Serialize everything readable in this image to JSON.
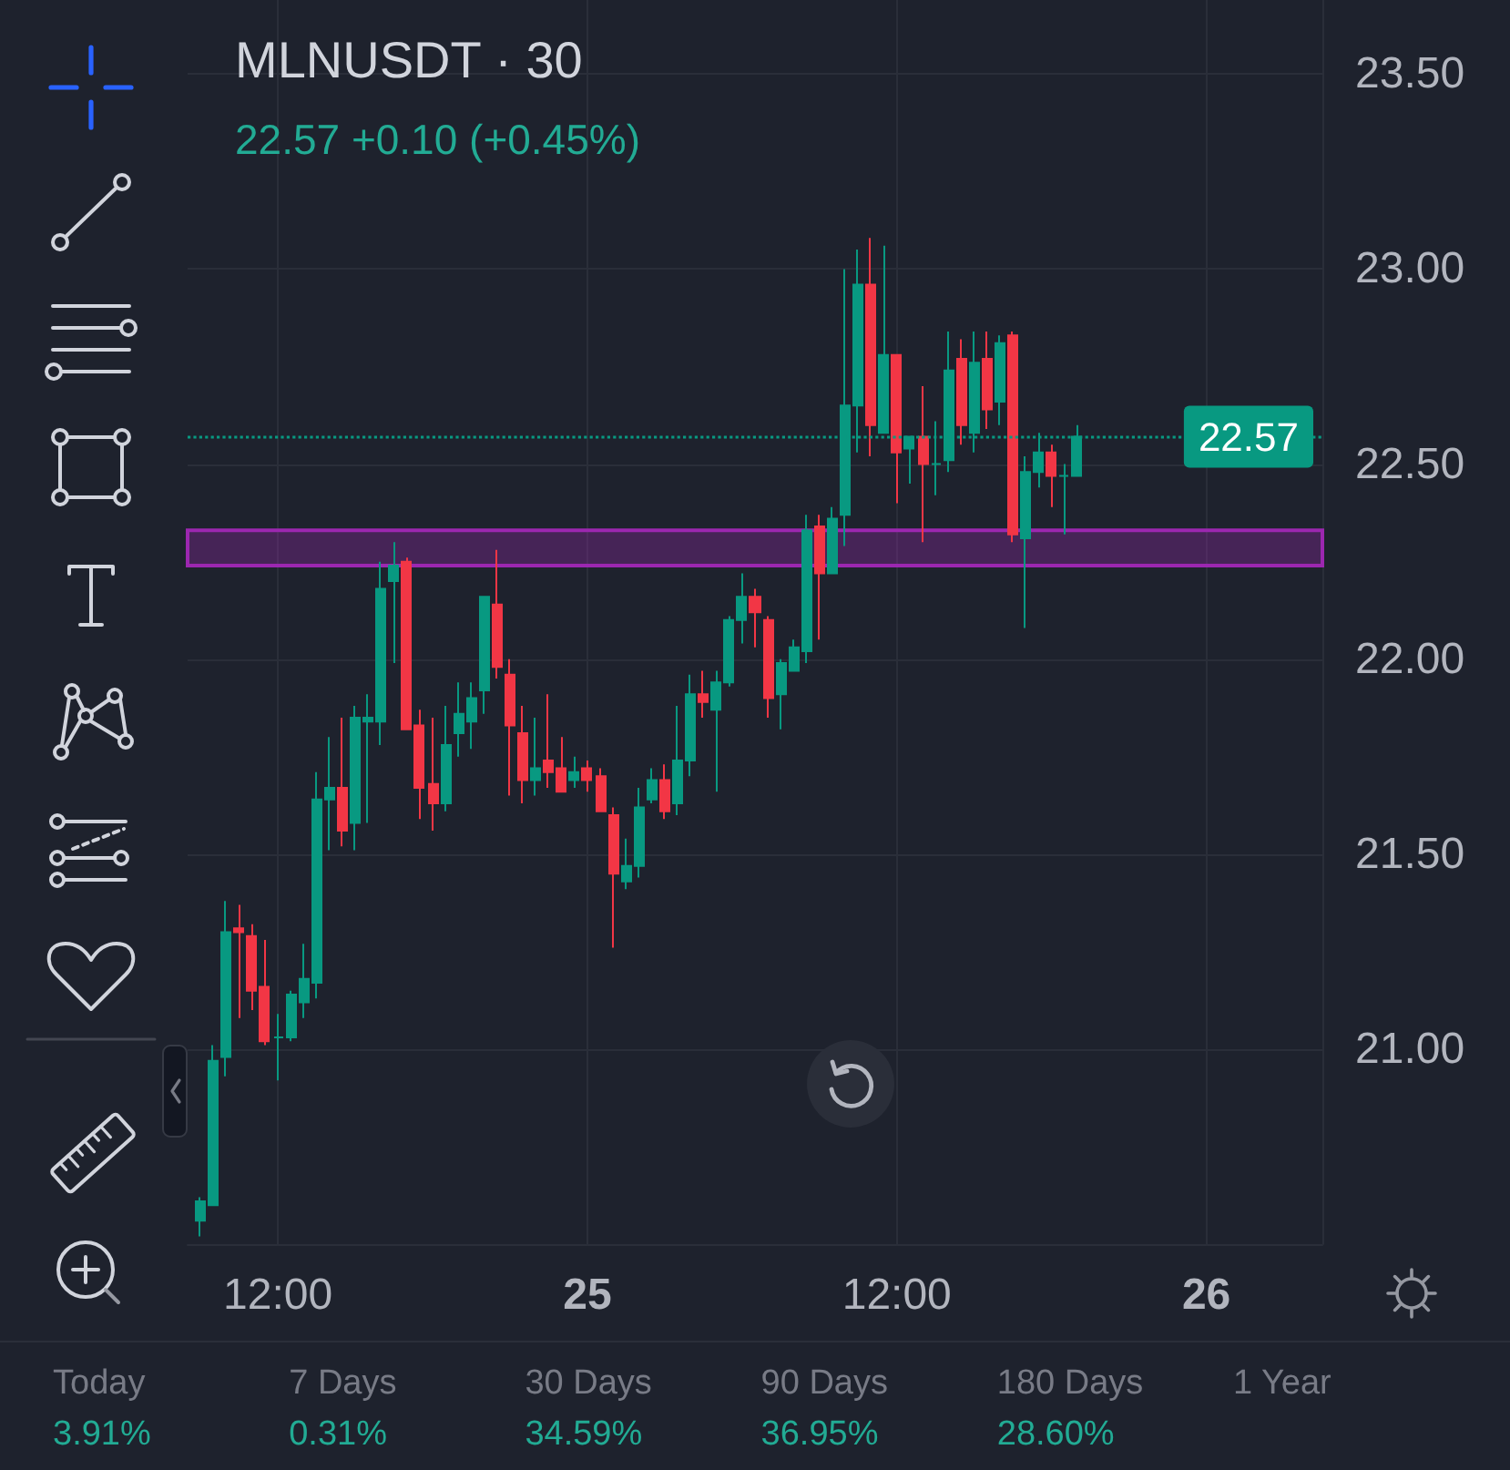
{
  "chart_data": {
    "type": "candlestick",
    "title": "MLNUSDT · 30",
    "subtitle": "22.57 +0.10 (+0.45%)",
    "categories": [
      null,
      null,
      null,
      null,
      null,
      null,
      null,
      "12:00",
      null,
      null,
      null,
      null,
      null,
      null,
      null,
      null,
      null,
      null,
      null,
      null,
      null,
      null,
      null,
      null,
      null,
      null,
      null,
      null,
      null,
      null,
      null,
      "25",
      null,
      null,
      null,
      null,
      null,
      null,
      null,
      null,
      null,
      null,
      null,
      null,
      null,
      null,
      null,
      null,
      null,
      null,
      null,
      null,
      null,
      null,
      null,
      "12:00",
      null,
      null,
      null,
      null,
      null,
      null,
      null,
      null,
      null,
      null,
      null,
      null,
      null,
      null,
      null,
      null,
      null,
      null,
      null,
      null,
      null,
      null,
      null,
      "26",
      null,
      null,
      null,
      null,
      null,
      null,
      null,
      null,
      null
    ],
    "ohlc": [
      null,
      [
        20.56,
        20.62,
        20.52,
        20.61
      ],
      [
        20.6,
        21.01,
        20.6,
        20.97
      ],
      [
        20.98,
        21.38,
        20.93,
        21.3
      ],
      [
        21.31,
        21.37,
        21.08,
        21.3
      ],
      [
        21.29,
        21.32,
        21.1,
        21.15
      ],
      [
        21.16,
        21.28,
        21.01,
        21.02
      ],
      [
        21.03,
        21.09,
        20.92,
        21.03
      ],
      [
        21.03,
        21.15,
        21.02,
        21.14
      ],
      [
        21.12,
        21.27,
        21.08,
        21.18
      ],
      [
        21.17,
        21.71,
        21.13,
        21.64
      ],
      [
        21.64,
        21.8,
        21.51,
        21.67
      ],
      [
        21.67,
        21.85,
        21.52,
        21.56
      ],
      [
        21.58,
        21.88,
        21.51,
        21.85
      ],
      [
        21.84,
        21.91,
        21.58,
        21.85
      ],
      [
        21.84,
        22.25,
        21.78,
        22.18
      ],
      [
        22.2,
        22.3,
        21.99,
        22.24
      ],
      [
        22.25,
        22.26,
        21.82,
        21.82
      ],
      [
        21.83,
        21.87,
        21.59,
        21.67
      ],
      [
        21.68,
        21.85,
        21.56,
        21.63
      ],
      [
        21.63,
        21.88,
        21.61,
        21.78
      ],
      [
        21.81,
        21.94,
        21.75,
        21.86
      ],
      [
        21.84,
        21.94,
        21.77,
        21.9
      ],
      [
        21.92,
        22.16,
        21.86,
        22.16
      ],
      [
        22.14,
        22.28,
        21.95,
        21.98
      ],
      [
        21.96,
        22.0,
        21.65,
        21.83
      ],
      [
        21.81,
        21.88,
        21.63,
        21.69
      ],
      [
        21.69,
        21.85,
        21.65,
        21.72
      ],
      [
        21.74,
        21.91,
        21.67,
        21.71
      ],
      [
        21.72,
        21.8,
        21.66,
        21.66
      ],
      [
        21.69,
        21.75,
        21.67,
        21.71
      ],
      [
        21.72,
        21.74,
        21.66,
        21.69
      ],
      [
        21.7,
        21.72,
        21.61,
        21.61
      ],
      [
        21.6,
        21.62,
        21.26,
        21.45
      ],
      [
        21.43,
        21.54,
        21.41,
        21.47
      ],
      [
        21.47,
        21.67,
        21.44,
        21.62
      ],
      [
        21.64,
        21.72,
        21.63,
        21.69
      ],
      [
        21.69,
        21.73,
        21.59,
        21.61
      ],
      [
        21.63,
        21.88,
        21.6,
        21.74
      ],
      [
        21.74,
        21.96,
        21.7,
        21.91
      ],
      [
        21.91,
        21.97,
        21.85,
        21.89
      ],
      [
        21.87,
        21.97,
        21.66,
        21.94
      ],
      [
        21.94,
        22.11,
        21.93,
        22.1
      ],
      [
        22.1,
        22.22,
        22.04,
        22.16
      ],
      [
        22.16,
        22.18,
        22.03,
        22.12
      ],
      [
        22.1,
        22.11,
        21.85,
        21.9
      ],
      [
        21.91,
        22.0,
        21.82,
        21.99
      ],
      [
        21.97,
        22.05,
        21.97,
        22.03
      ],
      [
        22.02,
        22.37,
        21.99,
        22.33
      ],
      [
        22.34,
        22.37,
        22.05,
        22.22
      ],
      [
        22.22,
        22.39,
        22.22,
        22.36
      ],
      [
        22.37,
        23.0,
        22.29,
        22.65
      ],
      [
        22.65,
        23.05,
        22.53,
        22.96
      ],
      [
        22.96,
        23.08,
        22.52,
        22.6
      ],
      [
        22.58,
        23.06,
        22.58,
        22.78
      ],
      [
        22.78,
        22.78,
        22.4,
        22.53
      ],
      [
        22.54,
        22.57,
        22.45,
        22.57
      ],
      [
        22.57,
        22.7,
        22.3,
        22.5
      ],
      [
        22.5,
        22.61,
        22.42,
        22.5
      ],
      [
        22.51,
        22.84,
        22.48,
        22.74
      ],
      [
        22.77,
        22.82,
        22.55,
        22.6
      ],
      [
        22.58,
        22.84,
        22.53,
        22.76
      ],
      [
        22.77,
        22.84,
        22.59,
        22.64
      ],
      [
        22.66,
        22.83,
        22.6,
        22.81
      ],
      [
        22.83,
        22.84,
        22.3,
        22.32
      ],
      [
        22.31,
        22.52,
        22.08,
        22.48
      ],
      [
        22.48,
        22.58,
        22.44,
        22.53
      ],
      [
        22.53,
        22.55,
        22.39,
        22.47
      ],
      [
        22.47,
        22.5,
        22.32,
        22.47
      ],
      [
        22.47,
        22.6,
        22.47,
        22.57
      ],
      null,
      null,
      null,
      null,
      null,
      null,
      null,
      null,
      null,
      null,
      null,
      null,
      null,
      null,
      null,
      null,
      null,
      null,
      null
    ],
    "colors": [
      null,
      "#089981",
      "#089981",
      "#089981",
      "#f23645",
      "#f23645",
      "#f23645",
      "#089981",
      "#089981",
      "#089981",
      "#089981",
      "#089981",
      "#f23645",
      "#089981",
      "#089981",
      "#089981",
      "#089981",
      "#f23645",
      "#f23645",
      "#f23645",
      "#089981",
      "#089981",
      "#089981",
      "#089981",
      "#f23645",
      "#f23645",
      "#f23645",
      "#089981",
      "#f23645",
      "#f23645",
      "#089981",
      "#f23645",
      "#f23645",
      "#f23645",
      "#089981",
      "#089981",
      "#089981",
      "#f23645",
      "#089981",
      "#089981",
      "#f23645",
      "#089981",
      "#089981",
      "#089981",
      "#f23645",
      "#f23645",
      "#089981",
      "#089981",
      "#089981",
      "#f23645",
      "#089981",
      "#089981",
      "#089981",
      "#f23645",
      "#089981",
      "#f23645",
      "#089981",
      "#f23645",
      "#089981",
      "#089981",
      "#f23645",
      "#089981",
      "#f23645",
      "#089981",
      "#f23645",
      "#089981",
      "#089981",
      "#f23645",
      "#089981",
      "#089981",
      null,
      null,
      null,
      null,
      null,
      null,
      null,
      null,
      null,
      null,
      null,
      null,
      null,
      null,
      null,
      null,
      null,
      null,
      null
    ],
    "ylim": [
      20.5,
      23.69
    ],
    "yticks": [
      {
        "value": 21,
        "label": "21.00"
      },
      {
        "value": 21.5,
        "label": "21.50"
      },
      {
        "value": 22,
        "label": "22.00"
      },
      {
        "value": 22.5,
        "label": "22.50"
      },
      {
        "value": 23,
        "label": "23.00"
      },
      {
        "value": 23.5,
        "label": "23.50"
      }
    ],
    "ref_lines": [
      {
        "axis": "y",
        "value": 22.57,
        "label": "22.57",
        "color": "#089981",
        "line_style": "dotted"
      }
    ],
    "bands": [
      {
        "axis": "y",
        "from": 22.24,
        "to": 22.33,
        "color": "#9c27b0"
      }
    ],
    "grid": true,
    "annotations": [
      "Today",
      "3.91%",
      "7 Days",
      "0.31%",
      "30 Days",
      "34.59%",
      "90 Days",
      "36.95%",
      "180 Days",
      "28.60%",
      "1 Year"
    ]
  }
}
